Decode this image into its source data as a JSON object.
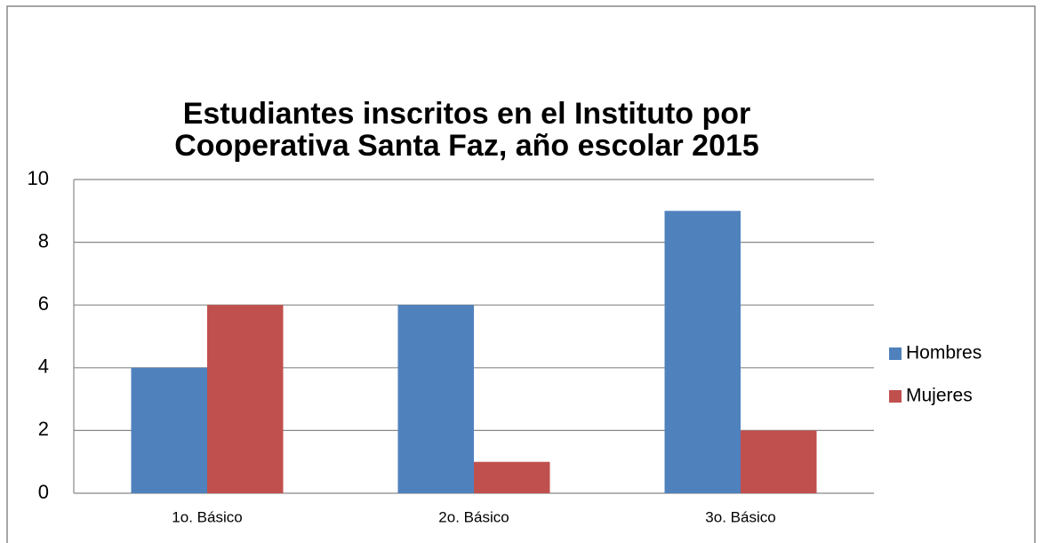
{
  "chart_data": {
    "type": "bar",
    "title": [
      "Estudiantes inscritos en el Instituto por",
      "Cooperativa Santa Faz,  año escolar 2015"
    ],
    "categories": [
      "1o. Básico",
      "2o. Básico",
      "3o. Básico"
    ],
    "series": [
      {
        "name": "Hombres",
        "color": "#4f81bd",
        "values": [
          4,
          6,
          9
        ]
      },
      {
        "name": "Mujeres",
        "color": "#c0504d",
        "values": [
          6,
          1,
          2
        ]
      }
    ],
    "ylim": [
      0,
      10
    ],
    "yticks": [
      0,
      2,
      4,
      6,
      8,
      10
    ],
    "grid": true,
    "legend": "right"
  }
}
